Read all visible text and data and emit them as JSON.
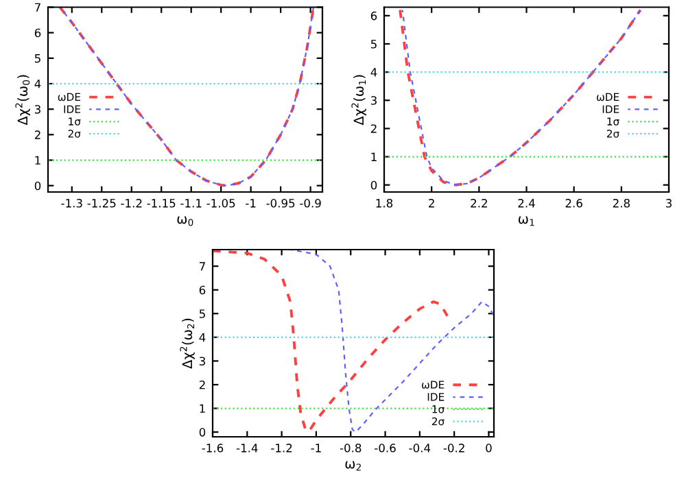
{
  "chart_data": [
    {
      "type": "line",
      "xlabel": "ω$_{0}$",
      "ylabel": "Δχ$^{2}$(ω$_{0}$)",
      "xlim": [
        -1.34,
        -0.88
      ],
      "ylim": [
        -0.25,
        7
      ],
      "xticks": [
        -1.3,
        -1.25,
        -1.2,
        -1.15,
        -1.1,
        -1.05,
        -1,
        -0.95,
        -0.9
      ],
      "yticks": [
        0,
        1,
        2,
        3,
        4,
        5,
        6,
        7
      ],
      "legend": "center left",
      "line_style": "dashed",
      "grid": false,
      "series": [
        {
          "name": "ωDE",
          "color": "#ff4040",
          "x": [
            -1.32,
            -1.3,
            -1.25,
            -1.2,
            -1.15,
            -1.125,
            -1.1,
            -1.075,
            -1.05,
            -1.04,
            -1.02,
            -1.0,
            -0.975,
            -0.95,
            -0.93,
            -0.918,
            -0.905,
            -0.895
          ],
          "values": [
            7.0,
            6.4,
            4.8,
            3.2,
            1.8,
            1.0,
            0.55,
            0.2,
            0.02,
            0,
            0.1,
            0.35,
            1.0,
            2.0,
            3.0,
            4.0,
            5.5,
            7.0
          ]
        },
        {
          "name": "IDE",
          "color": "#6060ff",
          "x": [
            -1.32,
            -1.3,
            -1.25,
            -1.2,
            -1.15,
            -1.125,
            -1.1,
            -1.075,
            -1.05,
            -1.04,
            -1.02,
            -1.0,
            -0.975,
            -0.95,
            -0.93,
            -0.918,
            -0.905,
            -0.895
          ],
          "values": [
            7.0,
            6.4,
            4.8,
            3.2,
            1.8,
            1.0,
            0.55,
            0.2,
            0.02,
            0,
            0.1,
            0.35,
            1.0,
            2.0,
            3.0,
            4.0,
            5.5,
            7.0
          ]
        }
      ],
      "ref_lines": [
        {
          "axis": "y",
          "value": 1,
          "label": "1σ",
          "color": "#40e040",
          "line_style": "dotted"
        },
        {
          "axis": "y",
          "value": 4,
          "label": "2σ",
          "color": "#40e0e0",
          "line_style": "dotted"
        }
      ]
    },
    {
      "type": "line",
      "xlabel": "ω$_{1}$",
      "ylabel": "Δχ$^{2}$(ω$_{1}$)",
      "xlim": [
        1.8,
        3
      ],
      "ylim": [
        -0.25,
        6.3
      ],
      "xticks": [
        1.8,
        2,
        2.2,
        2.4,
        2.6,
        2.8,
        3
      ],
      "yticks": [
        0,
        1,
        2,
        3,
        4,
        5,
        6
      ],
      "legend": "center right",
      "line_style": "dashed",
      "grid": false,
      "series": [
        {
          "name": "ωDE",
          "color": "#ff4040",
          "x": [
            1.867,
            1.9,
            1.97,
            2.0,
            2.05,
            2.1,
            2.15,
            2.2,
            2.33,
            2.4,
            2.5,
            2.6,
            2.68,
            2.8,
            2.88
          ],
          "values": [
            6.2,
            4,
            1,
            0.5,
            0.1,
            0,
            0.05,
            0.25,
            1,
            1.5,
            2.3,
            3.2,
            4,
            5.2,
            6.2
          ]
        },
        {
          "name": "IDE",
          "color": "#6060ff",
          "x": [
            1.877,
            1.91,
            1.98,
            2.0,
            2.05,
            2.1,
            2.15,
            2.2,
            2.33,
            2.4,
            2.5,
            2.6,
            2.68,
            2.8,
            2.88
          ],
          "values": [
            6.2,
            4,
            1,
            0.6,
            0.15,
            0,
            0.05,
            0.25,
            1,
            1.5,
            2.3,
            3.2,
            4,
            5.2,
            6.2
          ]
        }
      ],
      "ref_lines": [
        {
          "axis": "y",
          "value": 1,
          "label": "1σ",
          "color": "#40e040",
          "line_style": "dotted"
        },
        {
          "axis": "y",
          "value": 4,
          "label": "2σ",
          "color": "#40e0e0",
          "line_style": "dotted"
        }
      ]
    },
    {
      "type": "line",
      "xlabel": "ω$_{2}$",
      "ylabel": "Δχ$^{2}$(ω$_{2}$)",
      "xlim": [
        -1.6,
        0.03
      ],
      "ylim": [
        -0.2,
        7.7
      ],
      "xticks": [
        -1.6,
        -1.4,
        -1.2,
        -1,
        -0.8,
        -0.6,
        -0.4,
        -0.2,
        0
      ],
      "yticks": [
        0,
        1,
        2,
        3,
        4,
        5,
        6,
        7
      ],
      "legend": "lower right",
      "line_style": "dashed",
      "grid": false,
      "series": [
        {
          "name": "ωDE",
          "color": "#ff4040",
          "x": [
            -1.6,
            -1.4,
            -1.3,
            -1.2,
            -1.15,
            -1.13,
            -1.11,
            -1.09,
            -1.06,
            -1.04,
            -1.0,
            -0.9,
            -0.8,
            -0.7,
            -0.6,
            -0.5,
            -0.4,
            -0.32,
            -0.28,
            -0.24
          ],
          "values": [
            7.65,
            7.55,
            7.3,
            6.6,
            5.5,
            4,
            2,
            0.8,
            0.05,
            0.05,
            0.5,
            1.4,
            2.2,
            3.1,
            3.9,
            4.6,
            5.2,
            5.5,
            5.4,
            4.9
          ]
        },
        {
          "name": "IDE",
          "color": "#6060ff",
          "x": [
            -1.15,
            -1.0,
            -0.92,
            -0.87,
            -0.85,
            -0.83,
            -0.81,
            -0.79,
            -0.77,
            -0.72,
            -0.65,
            -0.5,
            -0.4,
            -0.3,
            -0.2,
            -0.1,
            -0.04,
            0.0,
            0.03
          ],
          "values": [
            7.7,
            7.5,
            7.0,
            6.0,
            4.5,
            2.5,
            1.0,
            0.1,
            0.0,
            0.4,
            1.0,
            2.1,
            2.9,
            3.7,
            4.4,
            5.0,
            5.5,
            5.3,
            4.9
          ]
        }
      ],
      "ref_lines": [
        {
          "axis": "y",
          "value": 1,
          "label": "1σ",
          "color": "#40e040",
          "line_style": "dotted"
        },
        {
          "axis": "y",
          "value": 4,
          "label": "2σ",
          "color": "#40e0e0",
          "line_style": "dotted"
        }
      ]
    }
  ]
}
